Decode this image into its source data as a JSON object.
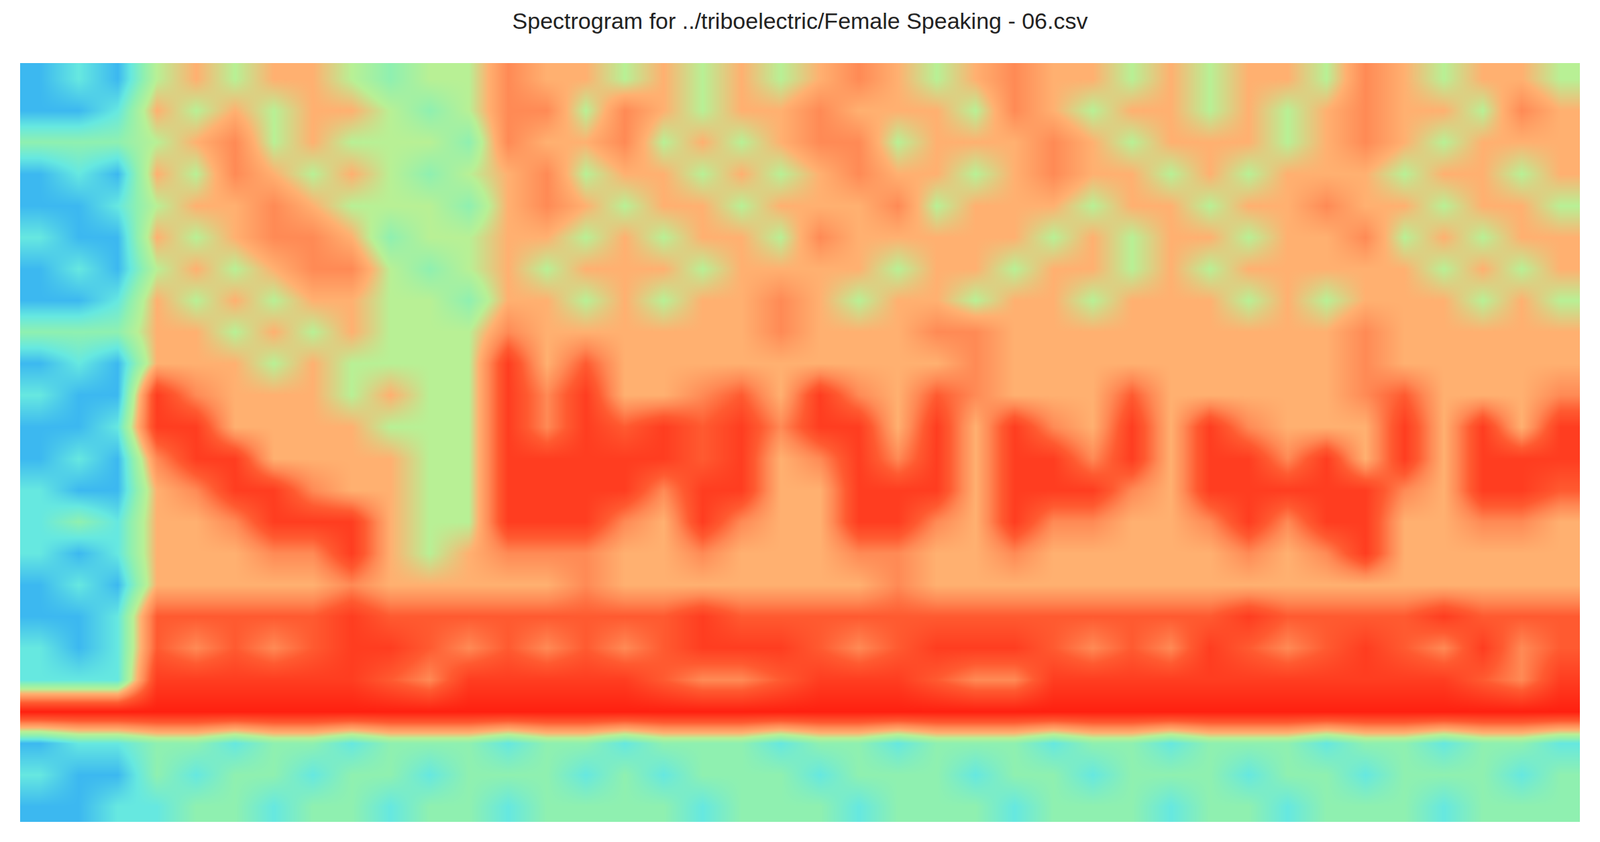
{
  "chart_data": {
    "type": "heatmap",
    "title": "Spectrogram for ../triboelectric/Female Speaking - 06.csv",
    "tick_labels": false,
    "zlim": [
      0,
      10
    ],
    "cells": [
      [
        2,
        3,
        2,
        5,
        6,
        5,
        6,
        6,
        5,
        4,
        5,
        5,
        7,
        6,
        6,
        5,
        6,
        5,
        6,
        5,
        6,
        7,
        6,
        5,
        6,
        7,
        6,
        6,
        5,
        6,
        5,
        6,
        6,
        5,
        7,
        6,
        5,
        6,
        6,
        5
      ],
      [
        2,
        2,
        3,
        6,
        5,
        6,
        5,
        6,
        6,
        5,
        4,
        5,
        7,
        7,
        5,
        7,
        6,
        5,
        6,
        6,
        7,
        6,
        6,
        6,
        5,
        7,
        6,
        5,
        6,
        6,
        5,
        6,
        5,
        6,
        7,
        6,
        6,
        5,
        7,
        6
      ],
      [
        4,
        4,
        4,
        5,
        6,
        7,
        5,
        6,
        5,
        5,
        5,
        4,
        7,
        6,
        6,
        7,
        5,
        6,
        5,
        6,
        7,
        7,
        5,
        6,
        6,
        6,
        7,
        6,
        5,
        6,
        6,
        6,
        5,
        6,
        7,
        6,
        5,
        6,
        6,
        6
      ],
      [
        2,
        3,
        2,
        6,
        5,
        7,
        6,
        5,
        6,
        5,
        4,
        5,
        6,
        7,
        5,
        6,
        6,
        5,
        6,
        5,
        6,
        7,
        6,
        6,
        5,
        6,
        7,
        6,
        6,
        5,
        6,
        5,
        6,
        6,
        6,
        5,
        6,
        6,
        5,
        6
      ],
      [
        2,
        2,
        3,
        5,
        6,
        6,
        7,
        6,
        5,
        5,
        5,
        4,
        6,
        7,
        6,
        5,
        6,
        6,
        5,
        6,
        6,
        6,
        7,
        5,
        6,
        6,
        6,
        5,
        6,
        6,
        5,
        6,
        6,
        7,
        6,
        6,
        5,
        6,
        6,
        5
      ],
      [
        3,
        2,
        2,
        6,
        5,
        6,
        7,
        7,
        6,
        4,
        5,
        5,
        6,
        6,
        5,
        6,
        5,
        6,
        6,
        5,
        7,
        6,
        6,
        6,
        6,
        6,
        5,
        6,
        5,
        6,
        6,
        5,
        6,
        6,
        7,
        5,
        6,
        5,
        6,
        6
      ],
      [
        2,
        3,
        2,
        5,
        6,
        5,
        6,
        7,
        7,
        5,
        4,
        5,
        6,
        5,
        6,
        6,
        6,
        5,
        6,
        6,
        6,
        6,
        5,
        6,
        6,
        5,
        6,
        6,
        5,
        6,
        5,
        6,
        6,
        6,
        6,
        6,
        5,
        6,
        5,
        6
      ],
      [
        2,
        2,
        3,
        6,
        5,
        6,
        5,
        6,
        6,
        5,
        5,
        4,
        6,
        6,
        5,
        6,
        5,
        6,
        6,
        7,
        6,
        5,
        6,
        6,
        5,
        6,
        6,
        5,
        6,
        6,
        6,
        5,
        6,
        5,
        6,
        6,
        6,
        5,
        6,
        5
      ],
      [
        4,
        4,
        4,
        6,
        6,
        5,
        6,
        5,
        6,
        5,
        5,
        5,
        7,
        6,
        6,
        6,
        6,
        6,
        6,
        7,
        6,
        6,
        6,
        7,
        7,
        6,
        6,
        6,
        6,
        6,
        6,
        6,
        6,
        6,
        7,
        6,
        6,
        6,
        6,
        6
      ],
      [
        2,
        3,
        2,
        6,
        6,
        6,
        5,
        6,
        5,
        5,
        5,
        5,
        9,
        6,
        8,
        6,
        6,
        6,
        6,
        6,
        6,
        6,
        6,
        6,
        7,
        6,
        6,
        6,
        6,
        6,
        6,
        6,
        6,
        6,
        7,
        6,
        6,
        6,
        6,
        6
      ],
      [
        3,
        2,
        2,
        9,
        7,
        6,
        6,
        6,
        5,
        6,
        5,
        5,
        9,
        7,
        9,
        6,
        6,
        7,
        8,
        6,
        9,
        7,
        6,
        8,
        7,
        6,
        6,
        6,
        8,
        6,
        6,
        6,
        6,
        6,
        7,
        8,
        6,
        6,
        6,
        7
      ],
      [
        2,
        2,
        3,
        9,
        9,
        6,
        6,
        6,
        6,
        5,
        5,
        5,
        9,
        7,
        9,
        8,
        9,
        8,
        9,
        7,
        9,
        9,
        6,
        9,
        6,
        9,
        7,
        6,
        9,
        6,
        9,
        7,
        6,
        6,
        6,
        9,
        6,
        9,
        6,
        9
      ],
      [
        2,
        3,
        2,
        7,
        9,
        9,
        6,
        6,
        6,
        6,
        5,
        5,
        9,
        9,
        9,
        9,
        9,
        8,
        9,
        6,
        7,
        9,
        7,
        9,
        6,
        9,
        9,
        7,
        9,
        6,
        9,
        9,
        7,
        9,
        6,
        9,
        6,
        9,
        9,
        9
      ],
      [
        3,
        2,
        2,
        6,
        7,
        9,
        9,
        7,
        6,
        6,
        5,
        5,
        9,
        9,
        9,
        9,
        7,
        9,
        9,
        6,
        6,
        9,
        9,
        9,
        6,
        9,
        9,
        9,
        7,
        6,
        9,
        9,
        9,
        9,
        9,
        7,
        6,
        9,
        9,
        8
      ],
      [
        3,
        4,
        3,
        6,
        6,
        7,
        9,
        9,
        9,
        6,
        5,
        5,
        9,
        9,
        9,
        7,
        6,
        9,
        7,
        6,
        6,
        9,
        9,
        7,
        6,
        9,
        7,
        7,
        6,
        6,
        7,
        9,
        7,
        9,
        9,
        6,
        6,
        7,
        7,
        6
      ],
      [
        3,
        2,
        3,
        6,
        6,
        6,
        7,
        7,
        9,
        6,
        5,
        6,
        7,
        7,
        7,
        6,
        6,
        7,
        6,
        6,
        6,
        7,
        7,
        6,
        6,
        7,
        6,
        6,
        6,
        6,
        6,
        7,
        6,
        7,
        9,
        6,
        6,
        6,
        6,
        6
      ],
      [
        2,
        3,
        2,
        6,
        6,
        6,
        6,
        6,
        7,
        6,
        6,
        6,
        6,
        6,
        7,
        6,
        6,
        6,
        6,
        6,
        6,
        6,
        7,
        6,
        6,
        6,
        6,
        6,
        6,
        6,
        6,
        6,
        6,
        6,
        6,
        6,
        6,
        6,
        6,
        6
      ],
      [
        2,
        2,
        3,
        8,
        8,
        8,
        8,
        8,
        9,
        8,
        8,
        8,
        8,
        8,
        8,
        8,
        8,
        9,
        8,
        8,
        8,
        8,
        8,
        8,
        8,
        8,
        8,
        8,
        8,
        8,
        8,
        9,
        8,
        8,
        8,
        8,
        9,
        8,
        8,
        8
      ],
      [
        3,
        2,
        3,
        8,
        7,
        8,
        7,
        8,
        9,
        9,
        8,
        7,
        8,
        7,
        8,
        7,
        8,
        9,
        9,
        9,
        8,
        7,
        8,
        9,
        9,
        9,
        8,
        7,
        8,
        7,
        9,
        8,
        7,
        8,
        9,
        8,
        7,
        9,
        7,
        8
      ],
      [
        3,
        3,
        3,
        9,
        9,
        9,
        9,
        9,
        9,
        8,
        7,
        9,
        9,
        9,
        9,
        9,
        8,
        7,
        7,
        8,
        9,
        9,
        9,
        8,
        7,
        7,
        9,
        9,
        9,
        9,
        9,
        9,
        9,
        9,
        9,
        9,
        9,
        8,
        7,
        9
      ],
      [
        10,
        10,
        10,
        10,
        10,
        10,
        10,
        10,
        10,
        10,
        10,
        10,
        10,
        10,
        10,
        10,
        10,
        10,
        10,
        10,
        10,
        10,
        10,
        10,
        10,
        10,
        10,
        10,
        10,
        10,
        10,
        10,
        10,
        10,
        10,
        10,
        10,
        10,
        10,
        10
      ],
      [
        2,
        3,
        3,
        4,
        4,
        3,
        4,
        4,
        3,
        4,
        4,
        4,
        3,
        4,
        4,
        3,
        4,
        4,
        4,
        3,
        4,
        4,
        3,
        4,
        4,
        4,
        3,
        4,
        4,
        3,
        4,
        4,
        4,
        3,
        4,
        4,
        3,
        4,
        4,
        3
      ],
      [
        3,
        2,
        2,
        4,
        3,
        4,
        4,
        3,
        4,
        4,
        3,
        4,
        4,
        4,
        3,
        4,
        3,
        4,
        4,
        4,
        3,
        4,
        4,
        4,
        3,
        4,
        4,
        3,
        4,
        4,
        4,
        3,
        4,
        4,
        3,
        4,
        4,
        4,
        3,
        4
      ],
      [
        2,
        2,
        3,
        3,
        4,
        4,
        3,
        4,
        4,
        3,
        4,
        4,
        3,
        4,
        4,
        4,
        4,
        3,
        4,
        4,
        4,
        3,
        4,
        4,
        4,
        3,
        4,
        4,
        4,
        3,
        4,
        4,
        3,
        4,
        4,
        4,
        3,
        4,
        4,
        4
      ]
    ]
  }
}
